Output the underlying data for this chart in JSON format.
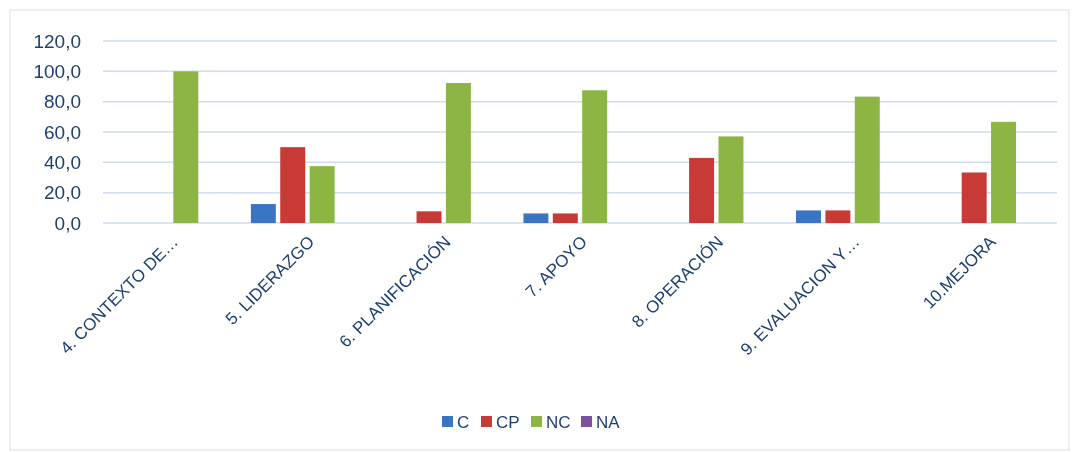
{
  "chart_data": {
    "type": "bar",
    "categories": [
      "4. CONTEXTO DE…",
      "5. LIDERAZGO",
      "6. PLANIFICACIÓN",
      "7. APOYO",
      "8. OPERACIÓN",
      "9. EVALUACION Y…",
      "10.MEJORA"
    ],
    "series": [
      {
        "name": "C",
        "color": "#3a75c4",
        "values": [
          0,
          12.5,
          0,
          6.3,
          0,
          8.3,
          0
        ]
      },
      {
        "name": "CP",
        "color": "#c83a36",
        "values": [
          0,
          50,
          7.7,
          6.3,
          42.9,
          8.3,
          33.3
        ]
      },
      {
        "name": "NC",
        "color": "#8db543",
        "values": [
          100,
          37.5,
          92.3,
          87.5,
          57.1,
          83.3,
          66.7
        ]
      },
      {
        "name": "NA",
        "color": "#7c52a0",
        "values": [
          0,
          0,
          0,
          0,
          0,
          0,
          0
        ]
      }
    ],
    "ylim": [
      0,
      120
    ],
    "yticks": [
      {
        "value": 0,
        "label": "0,0"
      },
      {
        "value": 20,
        "label": "20,0"
      },
      {
        "value": 40,
        "label": "40,0"
      },
      {
        "value": 60,
        "label": "60,0"
      },
      {
        "value": 80,
        "label": "80,0"
      },
      {
        "value": 100,
        "label": "100,0"
      },
      {
        "value": 120,
        "label": "120,0"
      }
    ],
    "grid": "y",
    "legend": "bottom"
  }
}
